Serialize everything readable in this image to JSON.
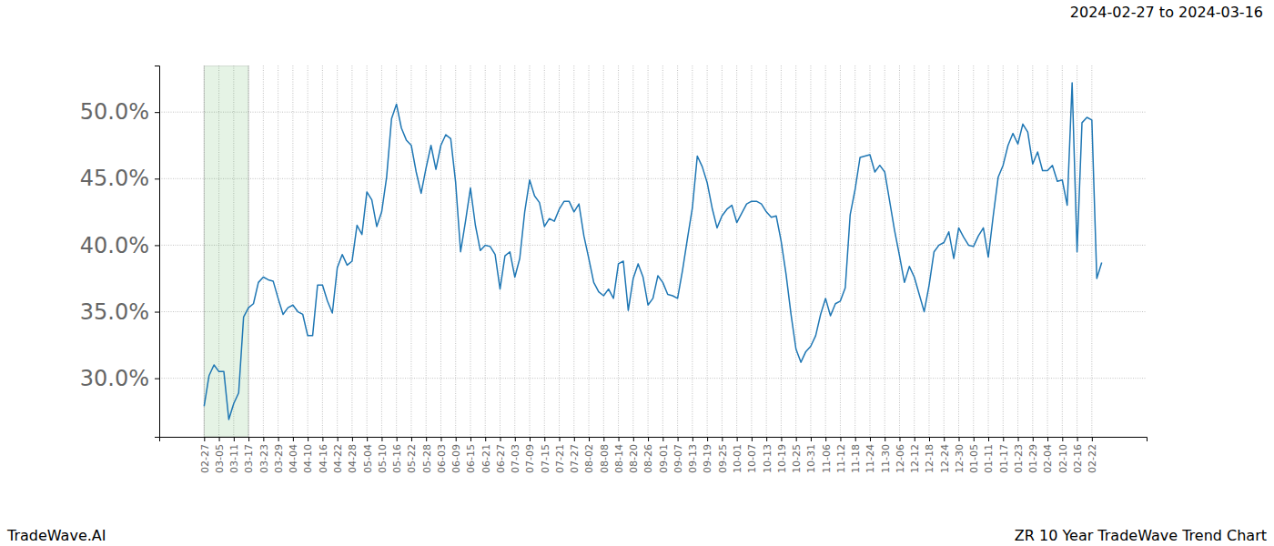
{
  "chart_data": {
    "type": "line",
    "title": "ZR 10 Year TradeWave Trend Chart",
    "subtitle": "2024-02-27 to 2024-03-16",
    "footer": "TradeWave.AI",
    "categories": [
      "02-27",
      null,
      null,
      "03-05",
      null,
      null,
      "03-11",
      null,
      null,
      "03-17",
      null,
      null,
      "03-23",
      null,
      null,
      "03-29",
      null,
      null,
      "04-04",
      null,
      null,
      "04-10",
      null,
      null,
      "04-16",
      null,
      null,
      "04-22",
      null,
      null,
      "04-28",
      null,
      null,
      "05-04",
      null,
      null,
      "05-10",
      null,
      null,
      "05-16",
      null,
      null,
      "05-22",
      null,
      null,
      "05-28",
      null,
      null,
      "06-03",
      null,
      null,
      "06-09",
      null,
      null,
      "06-15",
      null,
      null,
      "06-21",
      null,
      null,
      "06-27",
      null,
      null,
      "07-03",
      null,
      null,
      "07-09",
      null,
      null,
      "07-15",
      null,
      null,
      "07-21",
      null,
      null,
      "07-27",
      null,
      null,
      "08-02",
      null,
      null,
      "08-08",
      null,
      null,
      "08-14",
      null,
      null,
      "08-20",
      null,
      null,
      "08-26",
      null,
      null,
      "09-01",
      null,
      null,
      "09-07",
      null,
      null,
      "09-13",
      null,
      null,
      "09-19",
      null,
      null,
      "09-25",
      null,
      null,
      "10-01",
      null,
      null,
      "10-07",
      null,
      null,
      "10-13",
      null,
      null,
      "10-19",
      null,
      null,
      "10-25",
      null,
      null,
      "10-31",
      null,
      null,
      "11-06",
      null,
      null,
      "11-12",
      null,
      null,
      "11-18",
      null,
      null,
      "11-24",
      null,
      null,
      "11-30",
      null,
      null,
      "12-06",
      null,
      null,
      "12-12",
      null,
      null,
      "12-18",
      null,
      null,
      "12-24",
      null,
      null,
      "12-30",
      null,
      null,
      "01-05",
      null,
      null,
      "01-11",
      null,
      null,
      "01-17",
      null,
      null,
      "01-23",
      null,
      null,
      "01-29",
      null,
      null,
      "02-04",
      null,
      null,
      "02-10",
      null,
      null,
      "02-16",
      null,
      null,
      "02-22",
      null,
      null
    ],
    "values": [
      27.9,
      30.2,
      31,
      30.5,
      30.5,
      26.9,
      28.1,
      28.9,
      34.6,
      35.3,
      35.6,
      37.2,
      37.6,
      37.4,
      37.3,
      36,
      34.8,
      35.3,
      35.5,
      35,
      34.8,
      33.2,
      33.2,
      37,
      37,
      35.8,
      34.9,
      38.3,
      39.3,
      38.5,
      38.8,
      41.5,
      40.8,
      44,
      43.4,
      41.4,
      42.5,
      45.1,
      49.5,
      50.6,
      48.8,
      47.9,
      47.5,
      45.5,
      43.9,
      45.8,
      47.5,
      45.7,
      47.5,
      48.3,
      48,
      44.7,
      39.5,
      41.8,
      44.3,
      41.5,
      39.6,
      40,
      39.9,
      39.3,
      36.7,
      39.2,
      39.5,
      37.6,
      39,
      42.5,
      44.9,
      43.7,
      43.2,
      41.4,
      42,
      41.8,
      42.7,
      43.3,
      43.3,
      42.5,
      43.1,
      40.7,
      39,
      37.2,
      36.5,
      36.2,
      36.7,
      36,
      38.6,
      38.8,
      35.1,
      37.5,
      38.6,
      37.6,
      35.5,
      36,
      37.7,
      37.2,
      36.3,
      36.2,
      36,
      38.1,
      40.5,
      42.8,
      46.7,
      45.9,
      44.7,
      42.8,
      41.3,
      42.2,
      42.7,
      43,
      41.7,
      42.4,
      43.1,
      43.3,
      43.3,
      43.1,
      42.5,
      42.1,
      42.2,
      40.3,
      37.8,
      34.8,
      32.2,
      31.2,
      32,
      32.4,
      33.2,
      34.8,
      36,
      34.7,
      35.6,
      35.8,
      36.8,
      42.3,
      44.2,
      46.6,
      46.7,
      46.8,
      45.5,
      46,
      45.5,
      43.3,
      41.1,
      39.2,
      37.2,
      38.4,
      37.6,
      36.3,
      35,
      37,
      39.5,
      40,
      40.2,
      41,
      39,
      41.3,
      40.6,
      40,
      39.9,
      40.7,
      41.3,
      39.1,
      42.2,
      45.1,
      46,
      47.5,
      48.4,
      47.6,
      49.1,
      48.5,
      46.1,
      47,
      45.6,
      45.6,
      46,
      44.8,
      44.9,
      43,
      52.2,
      39.5,
      49.2,
      49.6,
      49.4,
      37.5,
      38.7
    ],
    "color": "#1f77b4",
    "highlight": {
      "start": "02-27",
      "end": "03-17"
    },
    "ylim": [
      25.6,
      53.5
    ],
    "yticks": [
      {
        "value": 30,
        "label": "30.0%"
      },
      {
        "value": 35,
        "label": "35.0%"
      },
      {
        "value": 40,
        "label": "40.0%"
      },
      {
        "value": 45,
        "label": "45.0%"
      },
      {
        "value": 50,
        "label": "50.0%"
      }
    ],
    "grid": true
  }
}
